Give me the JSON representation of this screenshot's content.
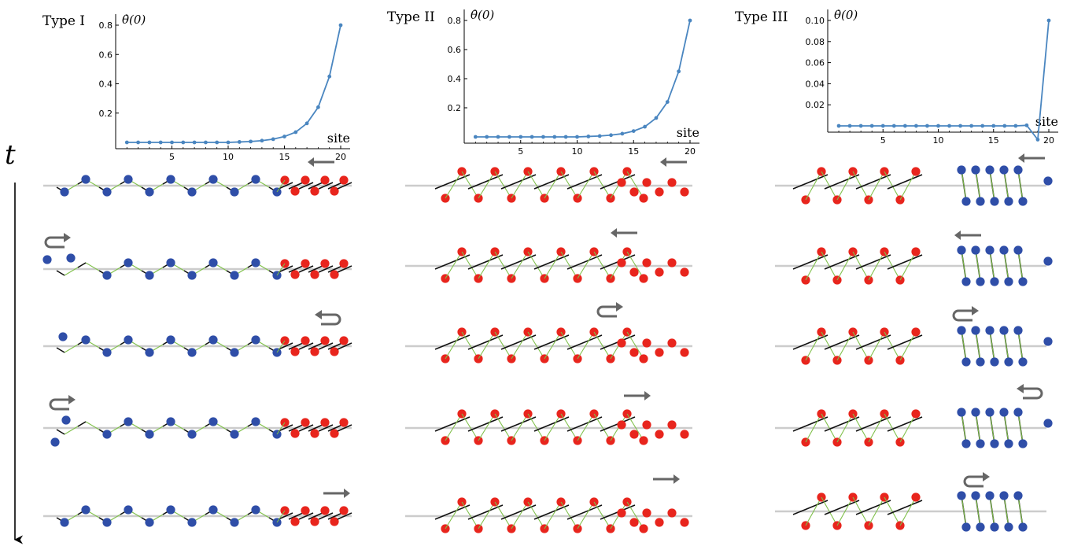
{
  "time_axis": {
    "label": "t"
  },
  "colors": {
    "curve": "#4a86c0",
    "blue_node": "#2f4ea8",
    "red_node": "#e8251d",
    "link": "#7fc04a",
    "rod": "#111111",
    "baseline": "#cccccc",
    "arrow": "#666666"
  },
  "chart_data": [
    {
      "type": "line",
      "panel_title": "Type I",
      "ylabel": "θ̇(0)",
      "xlabel": "site",
      "x": [
        1,
        2,
        3,
        4,
        5,
        6,
        7,
        8,
        9,
        10,
        11,
        12,
        13,
        14,
        15,
        16,
        17,
        18,
        19,
        20
      ],
      "values": [
        0.0,
        0.0,
        0.0,
        0.0,
        0.0,
        0.0,
        0.0,
        0.0,
        0.0,
        0.0,
        0.003,
        0.006,
        0.012,
        0.022,
        0.04,
        0.07,
        0.13,
        0.24,
        0.45,
        0.8
      ],
      "xticks": [
        5,
        10,
        15,
        20
      ],
      "yticks": [
        0.2,
        0.4,
        0.6,
        0.8
      ],
      "ylim": [
        -0.01,
        0.87
      ],
      "xlim": [
        0,
        20.5
      ]
    },
    {
      "type": "line",
      "panel_title": "Type II",
      "ylabel": "θ̇(0)",
      "xlabel": "site",
      "x": [
        1,
        2,
        3,
        4,
        5,
        6,
        7,
        8,
        9,
        10,
        11,
        12,
        13,
        14,
        15,
        16,
        17,
        18,
        19,
        20
      ],
      "values": [
        0.0,
        0.0,
        0.0,
        0.0,
        0.0,
        0.0,
        0.0,
        0.0,
        0.0,
        0.0,
        0.003,
        0.006,
        0.012,
        0.022,
        0.04,
        0.07,
        0.13,
        0.24,
        0.45,
        0.8
      ],
      "xticks": [
        5,
        10,
        15,
        20
      ],
      "yticks": [
        0.2,
        0.4,
        0.6,
        0.8
      ],
      "ylim": [
        -0.01,
        0.87
      ],
      "xlim": [
        0,
        20.5
      ]
    },
    {
      "type": "line",
      "panel_title": "Type III",
      "ylabel": "θ̇(0)",
      "xlabel": "site",
      "x": [
        1,
        2,
        3,
        4,
        5,
        6,
        7,
        8,
        9,
        10,
        11,
        12,
        13,
        14,
        15,
        16,
        17,
        18,
        19,
        20
      ],
      "values": [
        0.0,
        0.0,
        0.0,
        0.0,
        0.0,
        0.0,
        0.0,
        0.0,
        0.0,
        0.0,
        0.0,
        0.0,
        0.0,
        0.0,
        0.0,
        0.0,
        0.0,
        0.0005,
        -0.013,
        0.1
      ],
      "xticks": [
        5,
        10,
        15,
        20
      ],
      "yticks": [
        0.02,
        0.04,
        0.06,
        0.08,
        0.1
      ],
      "ytick_labels": [
        "0.02",
        "0.04",
        "0.06",
        "0.08",
        "0.10"
      ],
      "ylim": [
        -0.016,
        0.106
      ],
      "xlim": [
        0,
        20.5
      ]
    }
  ]
}
